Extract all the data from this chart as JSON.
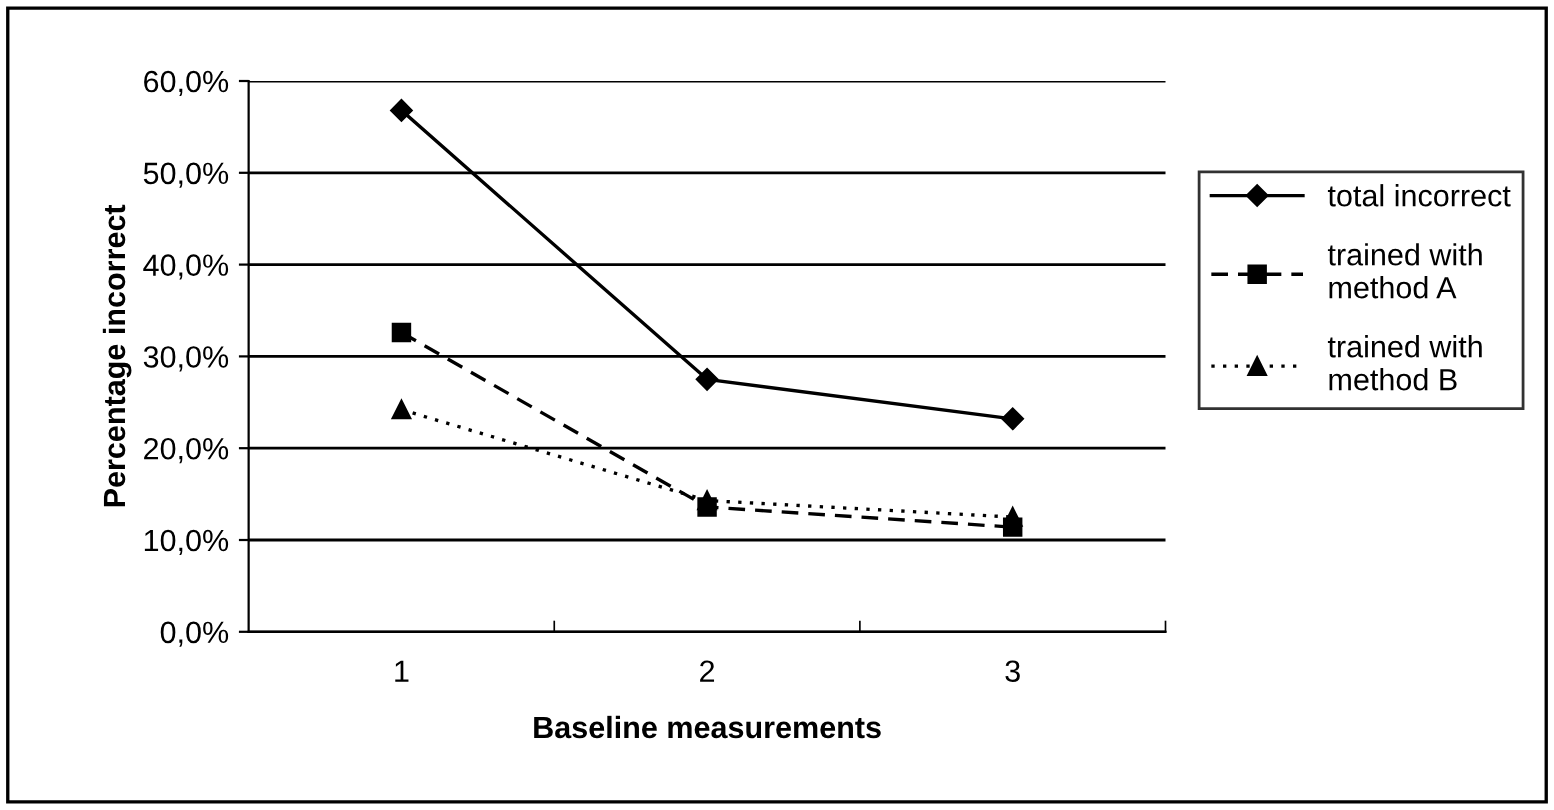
{
  "chart_data": {
    "type": "line",
    "xlabel": "Baseline measurements",
    "ylabel": "Percentage incorrect",
    "categories": [
      "1",
      "2",
      "3"
    ],
    "series": [
      {
        "name": "total incorrect",
        "color": "#000000",
        "values": [
          56.8,
          27.5,
          23.2
        ],
        "marker": "diamond",
        "line_style": "solid"
      },
      {
        "name": "trained with\nmethod A",
        "color": "#000000",
        "values": [
          32.6,
          13.6,
          11.4
        ],
        "marker": "square",
        "line_style": "dashed"
      },
      {
        "name": "trained with\nmethod B",
        "color": "#000000",
        "values": [
          24.2,
          14.3,
          12.5
        ],
        "marker": "triangle",
        "line_style": "dotted"
      }
    ],
    "ylim": [
      0,
      60
    ],
    "yticks": [
      {
        "value": 0,
        "label": "0,0%"
      },
      {
        "value": 10,
        "label": "10,0%"
      },
      {
        "value": 20,
        "label": "20,0%"
      },
      {
        "value": 30,
        "label": "30,0%"
      },
      {
        "value": 40,
        "label": "40,0%"
      },
      {
        "value": 50,
        "label": "50,0%"
      },
      {
        "value": 60,
        "label": "60,0%"
      }
    ],
    "grid": "y",
    "legend": "right"
  }
}
